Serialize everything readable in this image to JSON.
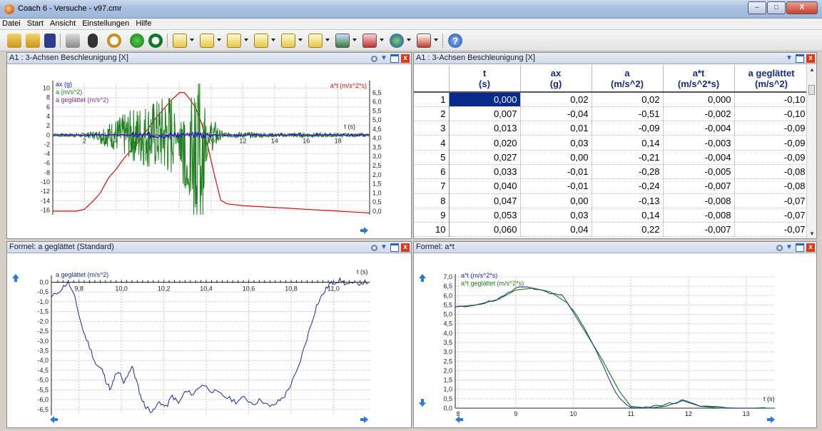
{
  "window": {
    "title": "Coach 6 - Versuche - v97.cmr",
    "minimize": "–",
    "maximize": "□",
    "close": "X"
  },
  "menu": [
    "Datei",
    "Start",
    "Ansicht",
    "Einstellungen",
    "Hilfe"
  ],
  "toolbar_icons": [
    "open-folder-icon",
    "open-activity-icon",
    "save-icon",
    "print-icon",
    "question-icon",
    "stopwatch-icon",
    "play-icon",
    "reset-icon",
    "sensor-icon",
    "meter-icon",
    "diagram-icon",
    "table-icon",
    "analysis-icon",
    "text-icon",
    "picture-icon",
    "video-icon",
    "globe-icon",
    "program-icon",
    "help-icon"
  ],
  "panels": {
    "top_left": {
      "title": "A1 : 3-Achsen Beschleunigung [X]",
      "legend": [
        "ax (g)",
        "a (m/s^2)",
        "a geglättet (m/s^2)"
      ],
      "right_axis_label": "a*t (m/s^2*s)",
      "t_label": "t (s)",
      "left_ticks": [
        "10",
        "8",
        "6",
        "4",
        "2",
        "0",
        "-2",
        "-4",
        "-6",
        "-8",
        "-10",
        "-12",
        "-14",
        "-16"
      ],
      "right_ticks": [
        "6,5",
        "6,0",
        "5,5",
        "5,0",
        "4,5",
        "4,0",
        "3,5",
        "3,0",
        "2,5",
        "2,0",
        "1,5",
        "1,0",
        "0,5",
        "0,0"
      ],
      "x_ticks": [
        "2",
        "4",
        "6",
        "8",
        "10",
        "12",
        "14",
        "16",
        "18"
      ]
    },
    "top_right": {
      "title": "A1 : 3-Achsen Beschleunigung [X]",
      "columns": [
        {
          "name": "t",
          "unit": "(s)"
        },
        {
          "name": "ax",
          "unit": "(g)"
        },
        {
          "name": "a",
          "unit": "(m/s^2)"
        },
        {
          "name": "a*t",
          "unit": "(m/s^2*s)"
        },
        {
          "name": "a geglättet",
          "unit": "(m/s^2)"
        }
      ],
      "rows": [
        [
          "1",
          "0,000",
          "0,02",
          "0,02",
          "0,000",
          "-0,10"
        ],
        [
          "2",
          "0,007",
          "-0,04",
          "-0,51",
          "-0,002",
          "-0,10"
        ],
        [
          "3",
          "0,013",
          "0,01",
          "-0,09",
          "-0,004",
          "-0,09"
        ],
        [
          "4",
          "0,020",
          "0,03",
          "0,14",
          "-0,003",
          "-0,09"
        ],
        [
          "5",
          "0,027",
          "0,00",
          "-0,21",
          "-0,004",
          "-0,09"
        ],
        [
          "6",
          "0,033",
          "-0,01",
          "-0,28",
          "-0,005",
          "-0,08"
        ],
        [
          "7",
          "0,040",
          "-0,01",
          "-0,24",
          "-0,007",
          "-0,08"
        ],
        [
          "8",
          "0,047",
          "0,00",
          "-0,13",
          "-0,008",
          "-0,07"
        ],
        [
          "9",
          "0,053",
          "0,03",
          "0,14",
          "-0,008",
          "-0,07"
        ],
        [
          "10",
          "0,060",
          "0,04",
          "0,22",
          "-0,007",
          "-0,07"
        ]
      ]
    },
    "bottom_left": {
      "title": "Formel: a geglättet (Standard)",
      "legend": "a geglättet (m/s^2)",
      "t_label": "t (s)",
      "y_ticks": [
        "0,0",
        "-0,5",
        "-1,0",
        "-1,5",
        "-2,0",
        "-2,5",
        "-3,0",
        "-3,5",
        "-4,0",
        "-4,5",
        "-5,0",
        "-5,5",
        "-6,0",
        "-6,5"
      ],
      "x_ticks": [
        "9,8",
        "10,0",
        "10,2",
        "10,4",
        "10,6",
        "10,8",
        "11,0"
      ]
    },
    "bottom_right": {
      "title": "Formel: a*t",
      "legend": [
        "a*t (m/s^2*s)",
        "a*t geglättet (m/s^2*s)"
      ],
      "t_label": "t (s)",
      "y_ticks": [
        "7,0",
        "6,5",
        "6,0",
        "5,5",
        "5,0",
        "4,5",
        "4,0",
        "3,5",
        "3,0",
        "2,5",
        "2,0",
        "1,5",
        "1,0",
        "0,5",
        "0,0"
      ],
      "x_ticks": [
        "8",
        "9",
        "10",
        "11",
        "12",
        "13"
      ]
    }
  },
  "chart_data": [
    {
      "type": "line",
      "title": "A1 : 3-Achsen Beschleunigung [X]",
      "xlabel": "t (s)",
      "xlim": [
        0,
        20
      ],
      "ylim": [
        -17,
        11
      ],
      "y2lim": [
        -0.2,
        7.0
      ],
      "series": [
        {
          "name": "ax (g)",
          "color": "#1010d0",
          "axis": "left",
          "x": [
            0,
            2,
            4,
            5,
            6,
            7,
            8,
            9,
            10,
            11,
            12,
            14,
            16,
            18,
            20
          ],
          "y": [
            0,
            0,
            0.05,
            -0.1,
            0.1,
            -0.2,
            0.3,
            -0.5,
            0.2,
            -0.1,
            0,
            0,
            0,
            0,
            0
          ]
        },
        {
          "name": "a (m/s^2)",
          "color": "#208020",
          "axis": "left",
          "x": [
            0,
            2,
            3.5,
            4.5,
            5.5,
            6.5,
            7.5,
            8.2,
            8.8,
            9.3,
            10,
            11,
            12,
            14,
            16,
            18,
            20
          ],
          "y": [
            0,
            0.5,
            2,
            4,
            6,
            7,
            9,
            -10,
            -14,
            -16,
            3,
            0.5,
            0.8,
            0.3,
            0.5,
            0.3,
            0
          ]
        },
        {
          "name": "a geglättet (m/s^2)",
          "color": "#8a2a9a",
          "axis": "left",
          "x": [
            0,
            20
          ],
          "y": [
            0,
            0
          ]
        },
        {
          "name": "a*t (m/s^2*s)",
          "color": "#d01010",
          "axis": "right",
          "x": [
            0,
            1.5,
            2.0,
            2.6,
            3.0,
            3.5,
            4.0,
            4.5,
            5.0,
            5.5,
            6.0,
            6.5,
            7.0,
            7.5,
            8.0,
            8.3,
            8.6,
            9.0,
            9.4,
            9.8,
            10.2,
            10.6,
            11.0,
            12,
            14,
            16,
            18,
            20
          ],
          "y": [
            0,
            0,
            0.1,
            0.6,
            1.0,
            1.8,
            2.3,
            2.9,
            3.4,
            3.9,
            4.5,
            5.1,
            5.6,
            6.1,
            6.5,
            6.5,
            6.2,
            5.7,
            4.8,
            3.5,
            2.0,
            0.6,
            0.4,
            0.3,
            0.2,
            0.1,
            0.0,
            -0.1
          ]
        }
      ]
    },
    {
      "type": "line",
      "title": "Formel: a geglättet (Standard)",
      "xlabel": "t (s)",
      "xlim": [
        9.67,
        11.17
      ],
      "ylim": [
        -6.8,
        0.2
      ],
      "series": [
        {
          "name": "a geglättet (m/s^2)",
          "color": "#1a2a90",
          "x": [
            9.67,
            9.72,
            9.75,
            9.78,
            9.82,
            9.85,
            9.88,
            9.91,
            9.93,
            9.95,
            9.97,
            9.99,
            10.01,
            10.03,
            10.05,
            10.07,
            10.09,
            10.11,
            10.13,
            10.15,
            10.18,
            10.21,
            10.24,
            10.27,
            10.3,
            10.34,
            10.38,
            10.42,
            10.46,
            10.5,
            10.54,
            10.58,
            10.62,
            10.66,
            10.7,
            10.74,
            10.77,
            10.8,
            10.83,
            10.86,
            10.89,
            10.92,
            10.95,
            10.98,
            11.0,
            11.03,
            11.06,
            11.1,
            11.14,
            11.17
          ],
          "y": [
            -0.8,
            -0.3,
            0.0,
            -0.8,
            -2.5,
            -3.3,
            -4.2,
            -4.5,
            -5.1,
            -5.5,
            -4.8,
            -4.6,
            -5.2,
            -4.7,
            -4.3,
            -5.0,
            -5.8,
            -6.3,
            -6.5,
            -6.6,
            -6.1,
            -6.4,
            -5.8,
            -6.2,
            -5.6,
            -5.7,
            -5.2,
            -5.5,
            -5.7,
            -5.9,
            -6.1,
            -5.9,
            -6.2,
            -6.0,
            -6.4,
            -6.1,
            -5.8,
            -5.2,
            -4.5,
            -3.4,
            -2.3,
            -1.2,
            -0.6,
            -0.1,
            0.0,
            0.1,
            -0.1,
            -0.1,
            0.0,
            0.0
          ]
        }
      ]
    },
    {
      "type": "line",
      "title": "Formel: a*t",
      "xlabel": "t (s)",
      "xlim": [
        7.95,
        13.5
      ],
      "ylim": [
        0.0,
        7.0
      ],
      "series": [
        {
          "name": "a*t (m/s^2*s)",
          "color": "#1a2a90",
          "x": [
            7.95,
            8.2,
            8.4,
            8.6,
            8.8,
            9.0,
            9.2,
            9.4,
            9.6,
            9.8,
            10.0,
            10.2,
            10.4,
            10.6,
            10.8,
            11.0,
            11.2,
            11.4,
            11.6,
            11.8,
            11.9,
            12.0,
            12.2,
            12.5,
            13.0,
            13.5
          ],
          "y": [
            5.4,
            5.4,
            5.6,
            5.7,
            6.0,
            6.4,
            6.5,
            6.3,
            6.1,
            6.0,
            5.2,
            4.2,
            3.0,
            1.7,
            0.5,
            0.05,
            0.0,
            0.1,
            0.2,
            0.3,
            0.5,
            0.3,
            0.1,
            0.05,
            0.0,
            0.0
          ]
        },
        {
          "name": "a*t geglättet (m/s^2*s)",
          "color": "#208020",
          "x": [
            7.95,
            8.3,
            8.7,
            9.0,
            9.3,
            9.6,
            9.9,
            10.2,
            10.5,
            10.8,
            11.0,
            11.3,
            11.6,
            11.9,
            12.2,
            12.6,
            13.0,
            13.5
          ],
          "y": [
            5.4,
            5.5,
            5.8,
            6.3,
            6.4,
            6.2,
            5.6,
            4.1,
            2.6,
            0.9,
            0.1,
            0.0,
            0.1,
            0.4,
            0.1,
            0.0,
            0.0,
            0.0
          ]
        }
      ]
    }
  ]
}
